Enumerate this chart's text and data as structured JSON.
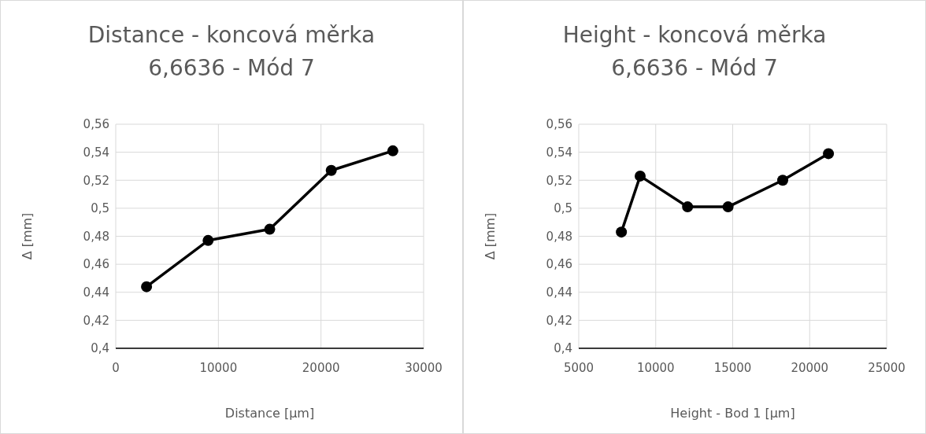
{
  "chart_data": [
    {
      "type": "line",
      "title": "Distance - koncová měrka\n6,6636 - Mód 7",
      "xlabel": "Distance [µm]",
      "ylabel": "Δ [mm]",
      "x": [
        3000,
        9000,
        15000,
        21000,
        27000
      ],
      "series": [
        {
          "color": "#000000",
          "values": [
            0.444,
            0.477,
            0.485,
            0.527,
            0.541
          ]
        }
      ],
      "xlim": [
        0,
        30000
      ],
      "xticks": [
        0,
        10000,
        20000,
        30000
      ],
      "ylim": [
        0.4,
        0.56
      ],
      "yticks": [
        {
          "value": 0.4,
          "label": "0,4"
        },
        {
          "value": 0.42,
          "label": "0,42"
        },
        {
          "value": 0.44,
          "label": "0,44"
        },
        {
          "value": 0.46,
          "label": "0,46"
        },
        {
          "value": 0.48,
          "label": "0,48"
        },
        {
          "value": 0.5,
          "label": "0,5"
        },
        {
          "value": 0.52,
          "label": "0,52"
        },
        {
          "value": 0.54,
          "label": "0,54"
        },
        {
          "value": 0.56,
          "label": "0,56"
        }
      ],
      "grid": true,
      "marker": "circle",
      "line_style": "solid"
    },
    {
      "type": "line",
      "title": "Height - koncová měrka\n6,6636 - Mód 7",
      "xlabel": "Height - Bod 1 [µm]",
      "ylabel": "Δ [mm]",
      "x": [
        7770,
        8990,
        12070,
        14700,
        18250,
        21220
      ],
      "series": [
        {
          "color": "#000000",
          "values": [
            0.483,
            0.523,
            0.501,
            0.501,
            0.52,
            0.539
          ]
        }
      ],
      "xlim": [
        5000,
        25000
      ],
      "xticks": [
        5000,
        10000,
        15000,
        20000,
        25000
      ],
      "ylim": [
        0.4,
        0.56
      ],
      "yticks": [
        {
          "value": 0.4,
          "label": "0,4"
        },
        {
          "value": 0.42,
          "label": "0,42"
        },
        {
          "value": 0.44,
          "label": "0,44"
        },
        {
          "value": 0.46,
          "label": "0,46"
        },
        {
          "value": 0.48,
          "label": "0,48"
        },
        {
          "value": 0.5,
          "label": "0,5"
        },
        {
          "value": 0.52,
          "label": "0,52"
        },
        {
          "value": 0.54,
          "label": "0,54"
        },
        {
          "value": 0.56,
          "label": "0,56"
        }
      ],
      "grid": true,
      "marker": "circle",
      "line_style": "solid"
    }
  ]
}
